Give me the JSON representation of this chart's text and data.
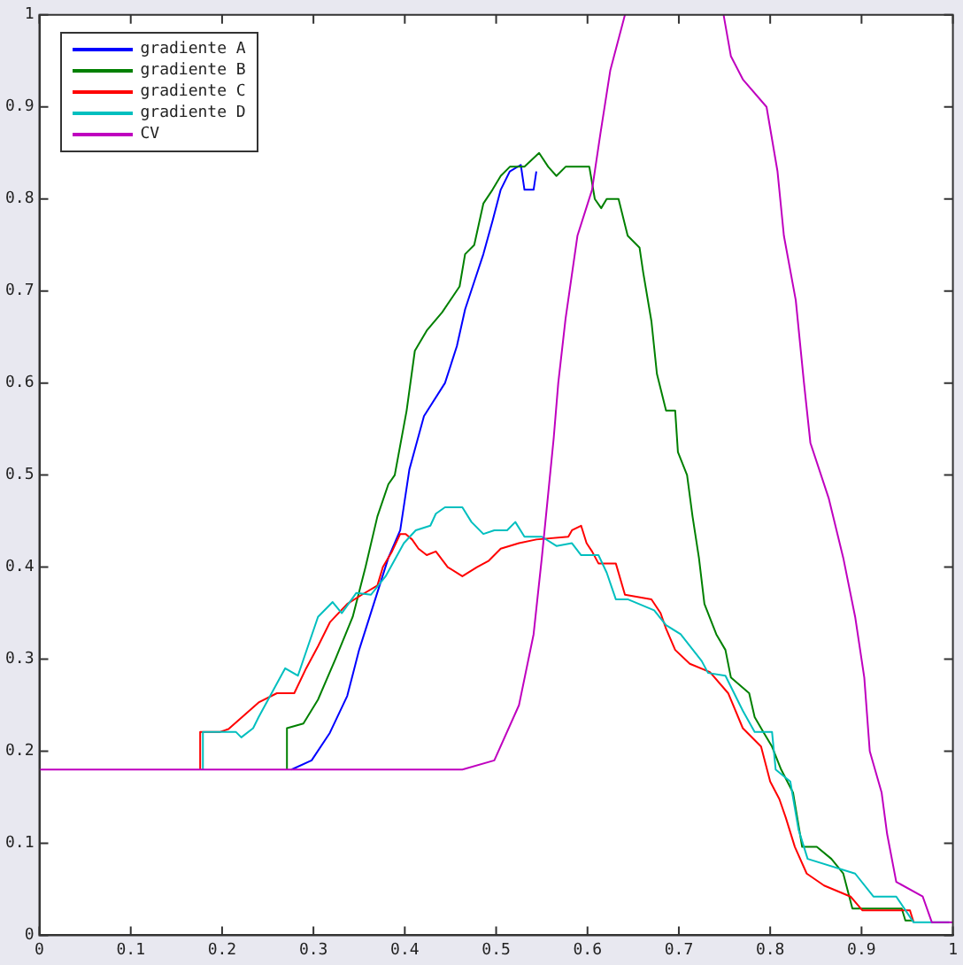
{
  "chart_data": {
    "type": "line",
    "xlim": [
      0,
      1
    ],
    "ylim": [
      0,
      1
    ],
    "xticks": [
      0,
      0.1,
      0.2,
      0.3,
      0.4,
      0.5,
      0.6,
      0.7,
      0.8,
      0.9,
      1
    ],
    "yticks": [
      0,
      0.1,
      0.2,
      0.3,
      0.4,
      0.5,
      0.6,
      0.7,
      0.8,
      0.9,
      1
    ],
    "grid": false,
    "legend": "top left",
    "marker": "none",
    "line_style": "solid",
    "series": [
      {
        "name": "gradiente A",
        "color": "#0000ff",
        "x": [
          0.276,
          0.298,
          0.318,
          0.337,
          0.35,
          0.366,
          0.382,
          0.395,
          0.405,
          0.421,
          0.444,
          0.457,
          0.466,
          0.476,
          0.486,
          0.496,
          0.505,
          0.515,
          0.527,
          0.531,
          0.541,
          0.544
        ],
        "values": [
          0.18,
          0.19,
          0.22,
          0.26,
          0.31,
          0.36,
          0.41,
          0.44,
          0.506,
          0.564,
          0.6,
          0.64,
          0.68,
          0.71,
          0.74,
          0.776,
          0.81,
          0.83,
          0.837,
          0.81,
          0.81,
          0.83
        ]
      },
      {
        "name": "gradiente B",
        "color": "#008000",
        "x": [
          0.271,
          0.271,
          0.289,
          0.305,
          0.324,
          0.343,
          0.357,
          0.37,
          0.382,
          0.389,
          0.402,
          0.411,
          0.424,
          0.441,
          0.46,
          0.466,
          0.476,
          0.486,
          0.496,
          0.505,
          0.515,
          0.531,
          0.547,
          0.557,
          0.566,
          0.576,
          0.602,
          0.608,
          0.615,
          0.621,
          0.634,
          0.644,
          0.657,
          0.661,
          0.67,
          0.676,
          0.686,
          0.696,
          0.699,
          0.709,
          0.715,
          0.722,
          0.728,
          0.741,
          0.751,
          0.757,
          0.777,
          0.783,
          0.793,
          0.802,
          0.812,
          0.825,
          0.835,
          0.851,
          0.867,
          0.88,
          0.89,
          0.944,
          0.948,
          0.957
        ],
        "values": [
          0.18,
          0.225,
          0.23,
          0.256,
          0.3,
          0.346,
          0.4,
          0.455,
          0.49,
          0.5,
          0.57,
          0.635,
          0.657,
          0.677,
          0.705,
          0.74,
          0.75,
          0.795,
          0.81,
          0.825,
          0.835,
          0.835,
          0.85,
          0.835,
          0.825,
          0.835,
          0.835,
          0.8,
          0.79,
          0.8,
          0.8,
          0.76,
          0.747,
          0.72,
          0.667,
          0.61,
          0.57,
          0.57,
          0.525,
          0.5,
          0.455,
          0.41,
          0.36,
          0.327,
          0.31,
          0.28,
          0.263,
          0.237,
          0.22,
          0.205,
          0.18,
          0.155,
          0.096,
          0.096,
          0.083,
          0.067,
          0.029,
          0.029,
          0.016,
          0.016
        ]
      },
      {
        "name": "gradiente C",
        "color": "#ff0000",
        "x": [
          0.176,
          0.176,
          0.198,
          0.207,
          0.24,
          0.26,
          0.279,
          0.292,
          0.305,
          0.318,
          0.337,
          0.353,
          0.37,
          0.376,
          0.386,
          0.395,
          0.401,
          0.408,
          0.415,
          0.424,
          0.434,
          0.447,
          0.463,
          0.479,
          0.492,
          0.505,
          0.525,
          0.544,
          0.579,
          0.583,
          0.593,
          0.599,
          0.605,
          0.612,
          0.631,
          0.641,
          0.67,
          0.68,
          0.686,
          0.696,
          0.712,
          0.734,
          0.754,
          0.77,
          0.79,
          0.8,
          0.81,
          0.817,
          0.827,
          0.84,
          0.859,
          0.888,
          0.901,
          0.953,
          0.957
        ],
        "values": [
          0.18,
          0.221,
          0.221,
          0.224,
          0.253,
          0.263,
          0.263,
          0.29,
          0.314,
          0.34,
          0.36,
          0.37,
          0.38,
          0.4,
          0.417,
          0.436,
          0.436,
          0.43,
          0.42,
          0.413,
          0.417,
          0.4,
          0.39,
          0.4,
          0.407,
          0.42,
          0.426,
          0.43,
          0.433,
          0.44,
          0.445,
          0.426,
          0.417,
          0.404,
          0.404,
          0.37,
          0.365,
          0.35,
          0.333,
          0.31,
          0.295,
          0.286,
          0.263,
          0.225,
          0.205,
          0.167,
          0.148,
          0.128,
          0.096,
          0.067,
          0.054,
          0.042,
          0.027,
          0.027,
          0.014
        ]
      },
      {
        "name": "gradiente D",
        "color": "#00bfbf",
        "x": [
          0.179,
          0.179,
          0.195,
          0.215,
          0.221,
          0.234,
          0.24,
          0.269,
          0.283,
          0.305,
          0.321,
          0.331,
          0.347,
          0.363,
          0.379,
          0.399,
          0.412,
          0.428,
          0.434,
          0.444,
          0.463,
          0.473,
          0.486,
          0.498,
          0.512,
          0.521,
          0.531,
          0.55,
          0.566,
          0.583,
          0.593,
          0.612,
          0.621,
          0.631,
          0.644,
          0.673,
          0.686,
          0.702,
          0.725,
          0.732,
          0.751,
          0.77,
          0.783,
          0.802,
          0.806,
          0.822,
          0.831,
          0.841,
          0.893,
          0.913,
          0.938,
          0.957,
          0.996
        ],
        "values": [
          0.18,
          0.221,
          0.221,
          0.221,
          0.215,
          0.225,
          0.237,
          0.29,
          0.282,
          0.346,
          0.362,
          0.35,
          0.372,
          0.37,
          0.39,
          0.426,
          0.44,
          0.445,
          0.458,
          0.465,
          0.465,
          0.449,
          0.436,
          0.44,
          0.44,
          0.449,
          0.433,
          0.433,
          0.423,
          0.426,
          0.413,
          0.413,
          0.394,
          0.365,
          0.365,
          0.353,
          0.337,
          0.327,
          0.298,
          0.285,
          0.282,
          0.244,
          0.221,
          0.221,
          0.18,
          0.167,
          0.115,
          0.083,
          0.067,
          0.042,
          0.042,
          0.014,
          0.014
        ]
      },
      {
        "name": "CV",
        "color": "#bf00bf",
        "x": [
          0,
          0.463,
          0.498,
          0.525,
          0.541,
          0.55,
          0.563,
          0.568,
          0.576,
          0.589,
          0.605,
          0.614,
          0.625,
          0.641,
          0.69,
          0.749,
          0.757,
          0.77,
          0.796,
          0.808,
          0.815,
          0.828,
          0.837,
          0.844,
          0.864,
          0.88,
          0.893,
          0.903,
          0.909,
          0.922,
          0.928,
          0.938,
          0.967,
          0.977,
          1.0
        ],
        "values": [
          0.18,
          0.18,
          0.19,
          0.25,
          0.327,
          0.41,
          0.54,
          0.6,
          0.67,
          0.76,
          0.81,
          0.87,
          0.94,
          1.0,
          null,
          1.0,
          0.955,
          0.93,
          0.9,
          0.83,
          0.76,
          0.69,
          0.6,
          0.535,
          0.475,
          0.41,
          0.346,
          0.28,
          0.2,
          0.155,
          0.11,
          0.058,
          0.042,
          0.014,
          0.014
        ]
      }
    ]
  }
}
